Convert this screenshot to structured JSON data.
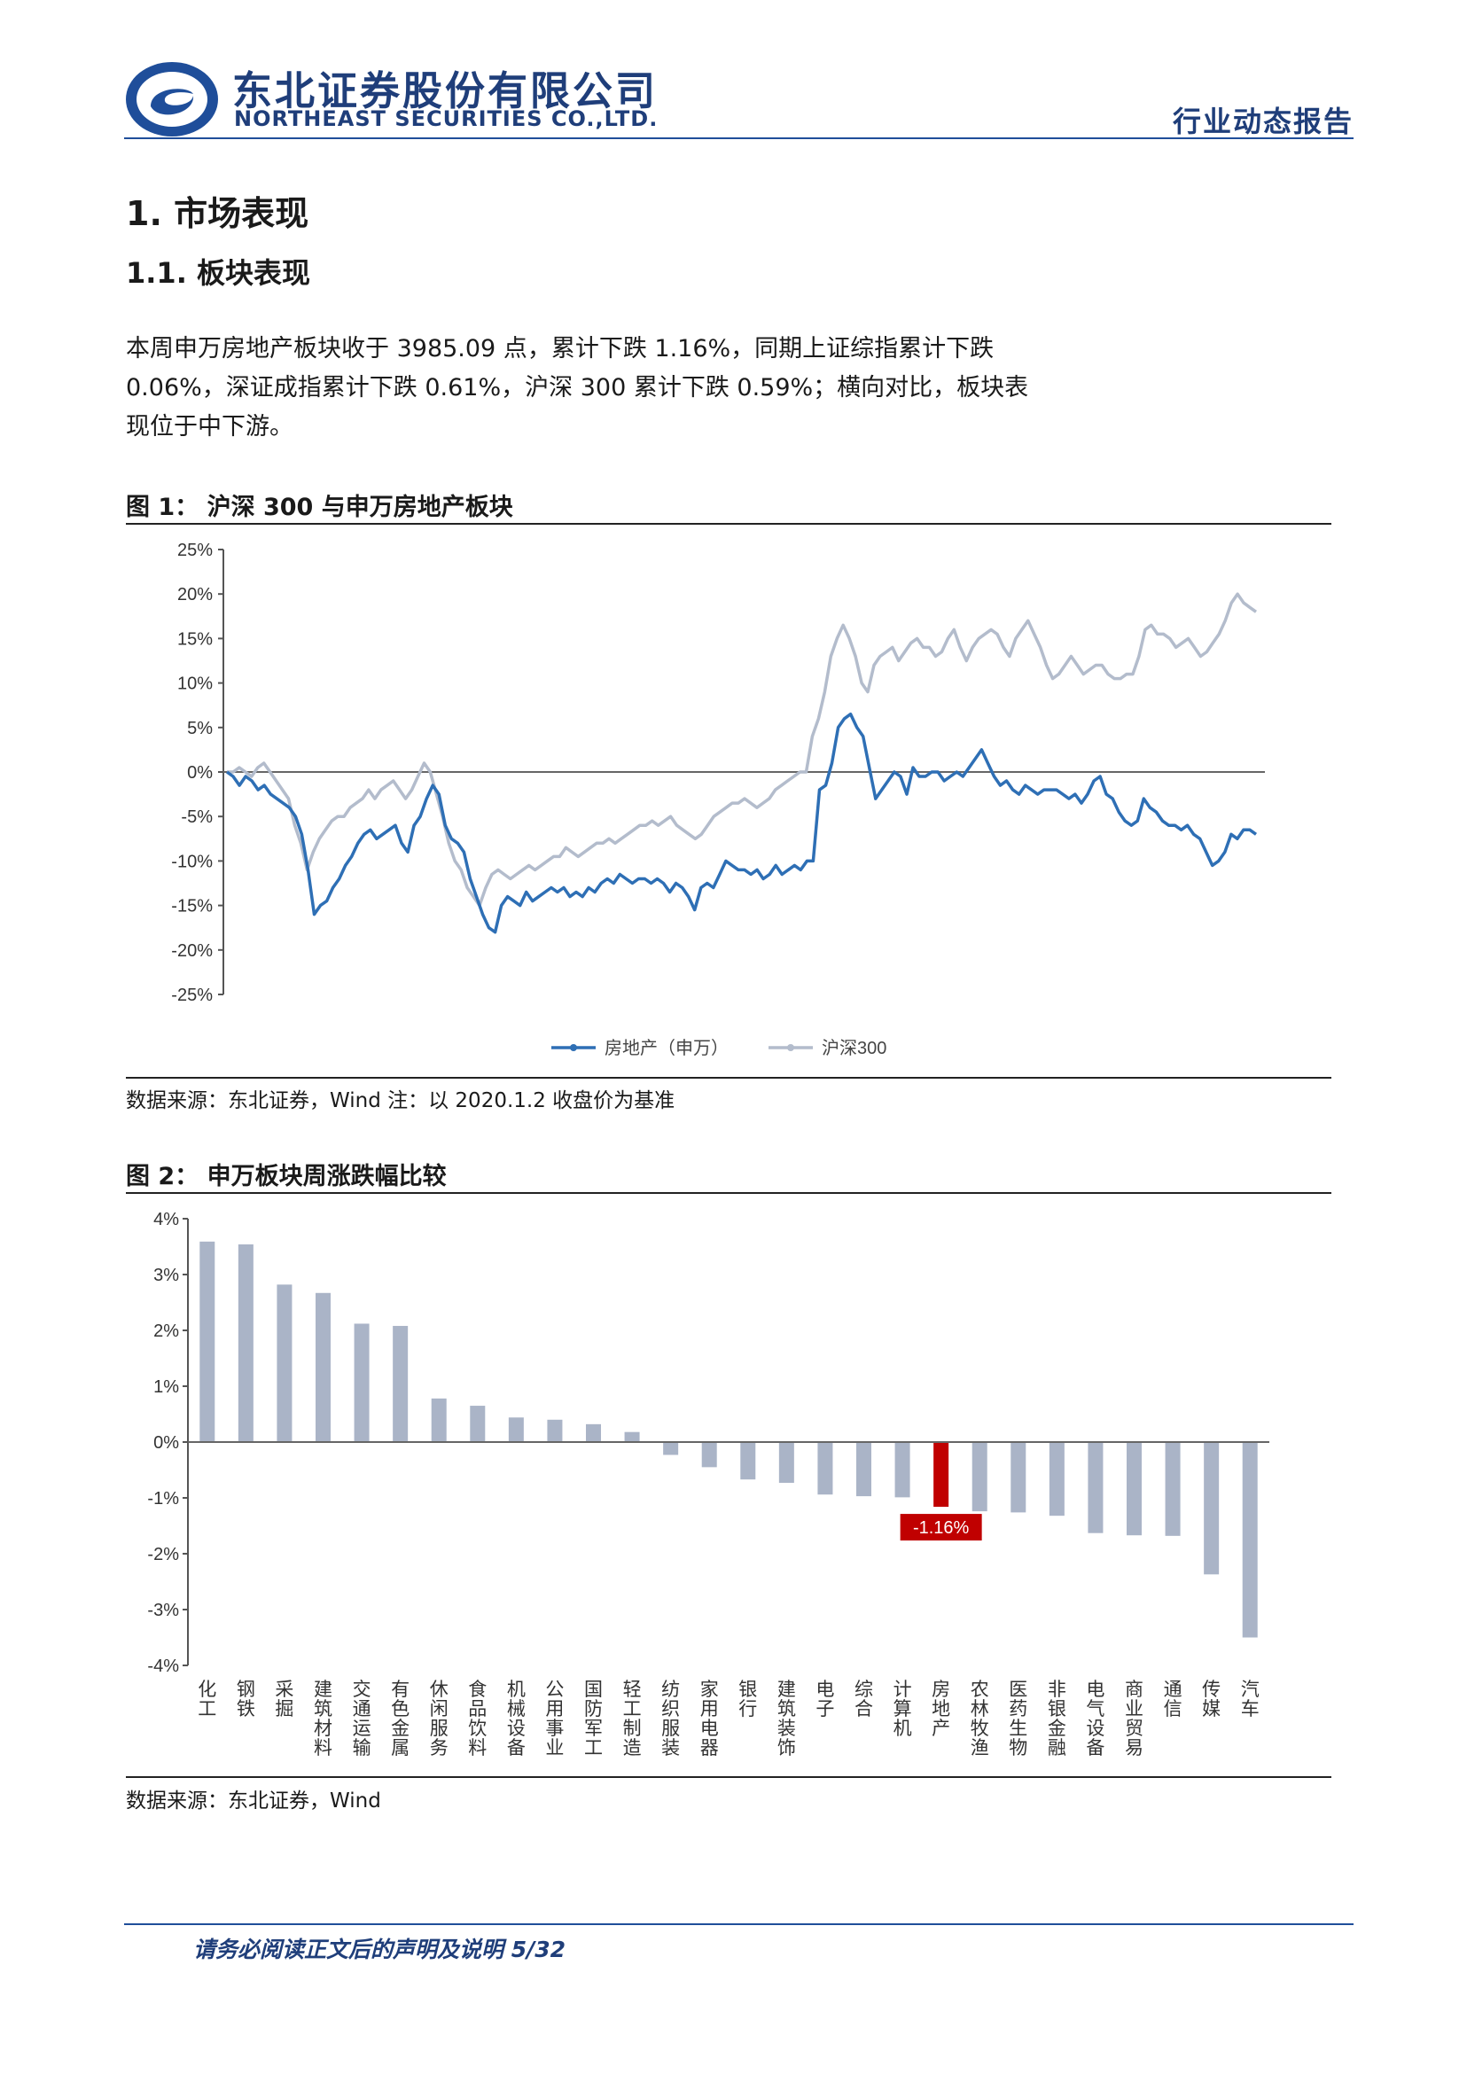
{
  "header": {
    "company_cn": "东北证券股份有限公司",
    "company_en": "NORTHEAST SECURITIES CO.,LTD.",
    "report_type": "行业动态报告"
  },
  "section1": {
    "title": "1.  市场表现"
  },
  "section11": {
    "title": "1.1.  板块表现"
  },
  "paragraph": [
    "本周申万房地产板块收于 3985.09 点，累计下跌 1.16%，同期上证综指累计下跌",
    "0.06%，深证成指累计下跌 0.61%，沪深 300 累计下跌 0.59%；横向对比，板块表",
    "现位于中下游。"
  ],
  "figure1": {
    "title": "图 1：  沪深 300 与申万房地产板块",
    "source": "数据来源：东北证券，Wind 注：以 2020.1.2 收盘价为基准"
  },
  "figure2": {
    "title": "图 2：  申万板块周涨跌幅比较",
    "source": "数据来源：东北证券，Wind",
    "highlight_label": "-1.16%"
  },
  "footer": {
    "text": "请务必阅读正文后的声明及说明  5/32"
  },
  "colors": {
    "brand": "#1f3e7a",
    "realestate": "#2e6fb5",
    "hs300": "#b3bccc",
    "bar": "#aab4c7",
    "highlight": "#c00000"
  },
  "chart_data": [
    {
      "type": "line",
      "ylim": [
        -25,
        25
      ],
      "yticks": [
        "25%",
        "20%",
        "15%",
        "10%",
        "5%",
        "0%",
        "-5%",
        "-10%",
        "-15%",
        "-20%",
        "-25%"
      ],
      "series": [
        {
          "name": "房地产（申万）",
          "values": [
            0,
            -0.5,
            -1.5,
            -0.5,
            -1,
            -2,
            -1.5,
            -2.5,
            -3,
            -3.5,
            -4,
            -5,
            -7,
            -11,
            -16,
            -15,
            -14.5,
            -13,
            -12,
            -10.5,
            -9.5,
            -8,
            -7,
            -6.5,
            -7.5,
            -7,
            -6.5,
            -6,
            -8,
            -9,
            -6,
            -5,
            -3,
            -1.5,
            -2.5,
            -6,
            -7.5,
            -8,
            -9,
            -12,
            -14,
            -16,
            -17.5,
            -18,
            -15,
            -14,
            -14.5,
            -15,
            -13.5,
            -14.5,
            -14,
            -13.5,
            -13,
            -13.5,
            -13,
            -14,
            -13.5,
            -14,
            -13,
            -13.5,
            -12.5,
            -12,
            -12.5,
            -11.5,
            -12,
            -12.5,
            -12,
            -12,
            -12.5,
            -12,
            -12.5,
            -13.5,
            -12.5,
            -13,
            -14,
            -15.5,
            -13,
            -12.5,
            -13,
            -11.5,
            -10,
            -10.5,
            -11,
            -11,
            -11.5,
            -11,
            -12,
            -11.5,
            -10.5,
            -11.5,
            -11,
            -10.5,
            -11,
            -10,
            -10,
            -2,
            -1.5,
            1,
            5,
            6,
            6.5,
            5,
            4,
            0.5,
            -3,
            -2,
            -1,
            0,
            -0.5,
            -2.5,
            0.5,
            -0.5,
            -0.5,
            0,
            0,
            -1,
            -0.5,
            0,
            -0.5,
            0.5,
            1.5,
            2.5,
            1,
            -0.5,
            -1.5,
            -1,
            -2,
            -2.5,
            -1.5,
            -2,
            -2.5,
            -2,
            -2,
            -2,
            -2.5,
            -3,
            -2.5,
            -3.5,
            -2.5,
            -1,
            -0.5,
            -2.5,
            -3,
            -4.5,
            -5.5,
            -6,
            -5.5,
            -3,
            -4,
            -4.5,
            -5.5,
            -6,
            -6,
            -6.5,
            -6,
            -7,
            -7.5,
            -9,
            -10.5,
            -10,
            -9,
            -7,
            -7.5,
            -6.5,
            -6.5,
            -7
          ]
        },
        {
          "name": "沪深300",
          "values": [
            0,
            0,
            0.5,
            0,
            -0.5,
            0.5,
            1,
            0,
            -1,
            -2,
            -3,
            -6,
            -8,
            -11,
            -9,
            -7.5,
            -6.5,
            -5.5,
            -5,
            -5,
            -4,
            -3.5,
            -3,
            -2,
            -3,
            -2,
            -1.5,
            -1,
            -2,
            -3,
            -2,
            -0.5,
            1,
            0,
            -2.5,
            -5,
            -8,
            -10,
            -11,
            -13,
            -14,
            -15,
            -13,
            -11.5,
            -11,
            -11.5,
            -12,
            -11.5,
            -11,
            -10.5,
            -11,
            -10.5,
            -10,
            -9.5,
            -9.5,
            -8.5,
            -9,
            -9.5,
            -9,
            -8.5,
            -8,
            -8,
            -7.5,
            -8,
            -7.5,
            -7,
            -6.5,
            -6,
            -6,
            -5.5,
            -6,
            -5.5,
            -5,
            -6,
            -6.5,
            -7,
            -7.5,
            -7,
            -6,
            -5,
            -4.5,
            -4,
            -3.5,
            -3.5,
            -3,
            -3.5,
            -4,
            -3.5,
            -3,
            -2,
            -1.5,
            -1,
            -0.5,
            0,
            0,
            4,
            6,
            9,
            13,
            15,
            16.5,
            15,
            13,
            10,
            9,
            12,
            13,
            13.5,
            14,
            12.5,
            13.5,
            14.5,
            15,
            14,
            14,
            13,
            13.5,
            15,
            16,
            14,
            12.5,
            14,
            15,
            15.5,
            16,
            15.5,
            14,
            13,
            15,
            16,
            17,
            15.5,
            14,
            12,
            10.5,
            11,
            12,
            13,
            12,
            11,
            11.5,
            12,
            12,
            11,
            10.5,
            10.5,
            11,
            11,
            13,
            16,
            16.5,
            15.5,
            15.5,
            15,
            14,
            14.5,
            15,
            14,
            13,
            13.5,
            14.5,
            15.5,
            17,
            19,
            20,
            19,
            18.5,
            18
          ]
        }
      ]
    },
    {
      "type": "bar",
      "ylim": [
        -4,
        4
      ],
      "yticks": [
        "4%",
        "3%",
        "2%",
        "1%",
        "0%",
        "-1%",
        "-2%",
        "-3%",
        "-4%"
      ],
      "categories": [
        "化工",
        "钢铁",
        "采掘",
        "建筑材料",
        "交通运输",
        "有色金属",
        "休闲服务",
        "食品饮料",
        "机械设备",
        "公用事业",
        "国防军工",
        "轻工制造",
        "纺织服装",
        "家用电器",
        "银行",
        "建筑装饰",
        "电子",
        "综合",
        "计算机",
        "房地产",
        "农林牧渔",
        "医药生物",
        "非银金融",
        "电气设备",
        "商业贸易",
        "通信",
        "传媒",
        "汽车"
      ],
      "values": [
        3.59,
        3.54,
        2.82,
        2.67,
        2.12,
        2.08,
        0.78,
        0.65,
        0.44,
        0.4,
        0.32,
        0.18,
        -0.23,
        -0.45,
        -0.67,
        -0.73,
        -0.94,
        -0.97,
        -0.99,
        -1.16,
        -1.24,
        -1.26,
        -1.32,
        -1.63,
        -1.67,
        -1.68,
        -2.37,
        -3.5
      ]
    }
  ]
}
